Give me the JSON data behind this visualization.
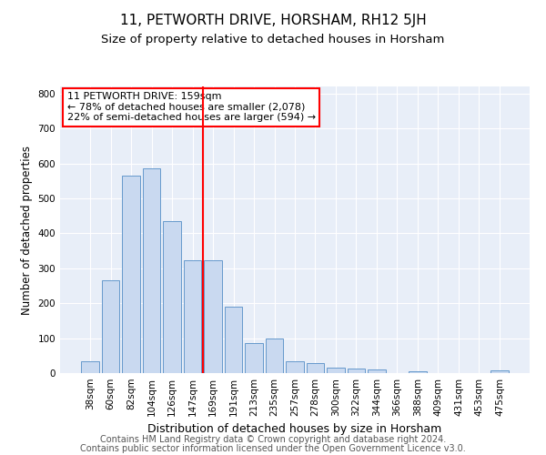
{
  "title": "11, PETWORTH DRIVE, HORSHAM, RH12 5JH",
  "subtitle": "Size of property relative to detached houses in Horsham",
  "xlabel": "Distribution of detached houses by size in Horsham",
  "ylabel": "Number of detached properties",
  "categories": [
    "38sqm",
    "60sqm",
    "82sqm",
    "104sqm",
    "126sqm",
    "147sqm",
    "169sqm",
    "191sqm",
    "213sqm",
    "235sqm",
    "257sqm",
    "278sqm",
    "300sqm",
    "322sqm",
    "344sqm",
    "366sqm",
    "388sqm",
    "409sqm",
    "431sqm",
    "453sqm",
    "475sqm"
  ],
  "values": [
    35,
    265,
    565,
    585,
    435,
    322,
    322,
    190,
    85,
    100,
    35,
    28,
    15,
    12,
    10,
    0,
    5,
    0,
    0,
    0,
    7
  ],
  "bar_color": "#c9d9f0",
  "bar_edge_color": "#6699cc",
  "highlight_line_label": "11 PETWORTH DRIVE: 159sqm",
  "annotation_line1": "← 78% of detached houses are smaller (2,078)",
  "annotation_line2": "22% of semi-detached houses are larger (594) →",
  "annotation_box_color": "white",
  "annotation_box_edge_color": "red",
  "vline_color": "red",
  "vline_x": 5.5,
  "ylim": [
    0,
    820
  ],
  "yticks": [
    0,
    100,
    200,
    300,
    400,
    500,
    600,
    700,
    800
  ],
  "background_color": "#e8eef8",
  "footer_line1": "Contains HM Land Registry data © Crown copyright and database right 2024.",
  "footer_line2": "Contains public sector information licensed under the Open Government Licence v3.0.",
  "title_fontsize": 11,
  "subtitle_fontsize": 9.5,
  "ylabel_fontsize": 8.5,
  "xlabel_fontsize": 9,
  "tick_fontsize": 7.5,
  "annotation_fontsize": 8,
  "footer_fontsize": 7
}
